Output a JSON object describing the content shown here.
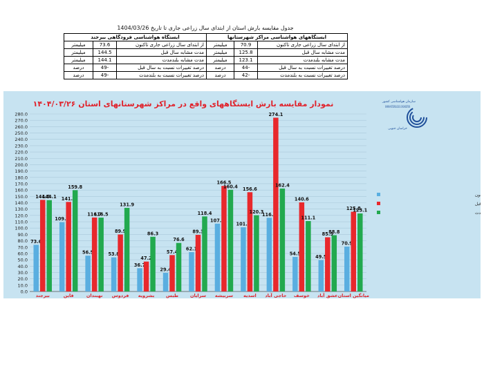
{
  "table": {
    "caption": "جدول مقایسه بارش استان از ابتدای سال زراعی جاری تا تاریخ 1404/03/26",
    "headers": {
      "right": "ایستگاههای هواشناسی مراکز شهرستانها",
      "left": "ایستگاه هواشناسی فرودگاهی بیرجند"
    },
    "rows": [
      {
        "right_label": "از ابتدای سال زراعی جاری تاکنون",
        "right_value": "70.9",
        "right_unit": "میلیمتر",
        "left_label": "از ابتدای سال زراعی جاری تاکنون",
        "left_value": "73.6",
        "left_unit": "میلیمتر"
      },
      {
        "right_label": "مدت مشابه سال قبل",
        "right_value": "125.8",
        "right_unit": "میلیمتر",
        "left_label": "مدت مشابه سال قبل",
        "left_value": "144.5",
        "left_unit": "میلیمتر"
      },
      {
        "right_label": "مدت مشابه بلندمدت",
        "right_value": "123.1",
        "right_unit": "میلیمتر",
        "left_label": "مدت مشابه بلندمدت",
        "left_value": "144.1",
        "left_unit": "میلیمتر"
      },
      {
        "right_label": "درصد تغییرات نسبت به سال قبل",
        "right_value": "-44",
        "right_unit": "درصد",
        "left_label": "درصد تغییرات نسبت به سال قبل",
        "left_value": "-49",
        "left_unit": "درصد"
      },
      {
        "right_label": "درصد تغییرات نسبت به بلندمدت",
        "right_value": "-42",
        "right_unit": "درصد",
        "left_label": "درصد تغییرات نسبت به بلندمدت",
        "left_value": "-49",
        "left_unit": "درصد"
      }
    ]
  },
  "logo": {
    "org_fa": "سازمان هواشناسی کشور",
    "org_en": "IRANIAN METEOROLOGICAL ORGANIZATION",
    "province": "خراسان جنوبی"
  },
  "colors": {
    "background": "#c7e3f1",
    "current": "#5aaee0",
    "last_year": "#e8282c",
    "long_term": "#22a94f",
    "title": "#e0222b"
  },
  "chart_data": {
    "type": "bar",
    "title": "نمودار مقایسه بارش ایستگاههای واقع در مراکز شهرستانهای استان ۱۴۰۴/۰۳/۲۶",
    "categories": [
      "بیرجند",
      "قاین",
      "نهبندان",
      "فردوس",
      "بشرویه",
      "طبس",
      "سرایان",
      "سربیشه",
      "اسدیه",
      "حاجی آباد",
      "خوسف",
      "عشق آباد",
      "میانگین استان"
    ],
    "series": [
      {
        "name": "از ابتدای سال زراعی جاری تاکنون",
        "values": [
          73.6,
          109.3,
          56.5,
          53.8,
          36.7,
          29.4,
          62.1,
          107.0,
          101.3,
          116.3,
          54.5,
          49.5,
          70.9
        ]
      },
      {
        "name": "مدت مشابه سال قبل",
        "values": [
          144.5,
          141.3,
          116.7,
          89.9,
          47.2,
          57.4,
          89.3,
          166.5,
          156.6,
          274.1,
          140.6,
          85.5,
          125.8
        ]
      },
      {
        "name": "میانگین مدت مشابه در بلند مدت",
        "values": [
          144.1,
          159.8,
          116.5,
          131.9,
          86.3,
          76.6,
          118.4,
          160.4,
          120.3,
          162.4,
          111.1,
          88.8,
          123.1
        ]
      }
    ],
    "ylim": [
      0,
      280
    ],
    "ytick_step": 10,
    "grid": true,
    "legend_position": "right"
  }
}
